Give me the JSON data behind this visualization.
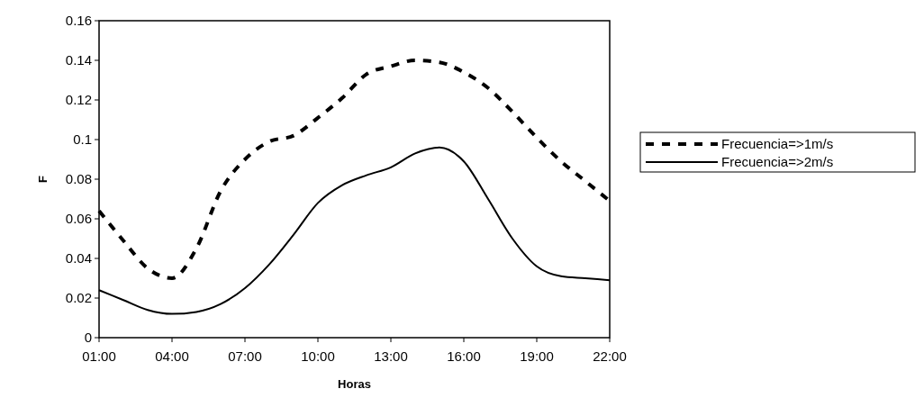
{
  "chart_data": {
    "type": "line",
    "xlabel": "Horas",
    "ylabel": "F",
    "x": [
      1,
      2,
      3,
      4,
      5,
      6,
      7,
      8,
      9,
      10,
      11,
      12,
      13,
      14,
      15,
      16,
      17,
      18,
      19,
      20,
      21,
      22
    ],
    "xlim": [
      1,
      22
    ],
    "xticks": [
      {
        "value": 1,
        "label": "01:00"
      },
      {
        "value": 4,
        "label": "04:00"
      },
      {
        "value": 7,
        "label": "07:00"
      },
      {
        "value": 10,
        "label": "10:00"
      },
      {
        "value": 13,
        "label": "13:00"
      },
      {
        "value": 16,
        "label": "16:00"
      },
      {
        "value": 19,
        "label": "19:00"
      },
      {
        "value": 22,
        "label": "22:00"
      }
    ],
    "ylim": [
      0,
      0.16
    ],
    "yticks": [
      0,
      {
        "value": 0.02,
        "label": "0.02"
      },
      {
        "value": 0.04,
        "label": "0.04"
      },
      {
        "value": 0.06,
        "label": "0.06"
      },
      {
        "value": 0.08,
        "label": "0.08"
      },
      {
        "value": 0.1,
        "label": "0.1"
      },
      {
        "value": 0.12,
        "label": "0.12"
      },
      {
        "value": 0.14,
        "label": "0.14"
      },
      {
        "value": 0.16,
        "label": "0.16"
      }
    ],
    "grid": false,
    "legend": "right",
    "marker": "none",
    "series": [
      {
        "name": "Frecuencia=>1m/s",
        "color": "#000000",
        "line_style": "dashed",
        "values": [
          0.064,
          0.049,
          0.035,
          0.03,
          0.045,
          0.074,
          0.09,
          0.099,
          0.102,
          0.111,
          0.121,
          0.133,
          0.137,
          0.14,
          0.139,
          0.134,
          0.126,
          0.114,
          0.101,
          0.089,
          0.079,
          0.069
        ]
      },
      {
        "name": "Frecuencia=>2m/s",
        "color": "#000000",
        "line_style": "solid",
        "values": [
          0.024,
          0.019,
          0.014,
          0.012,
          0.013,
          0.017,
          0.025,
          0.037,
          0.052,
          0.068,
          0.077,
          0.082,
          0.086,
          0.093,
          0.096,
          0.089,
          0.07,
          0.05,
          0.036,
          0.031,
          0.03,
          0.029
        ]
      }
    ]
  }
}
